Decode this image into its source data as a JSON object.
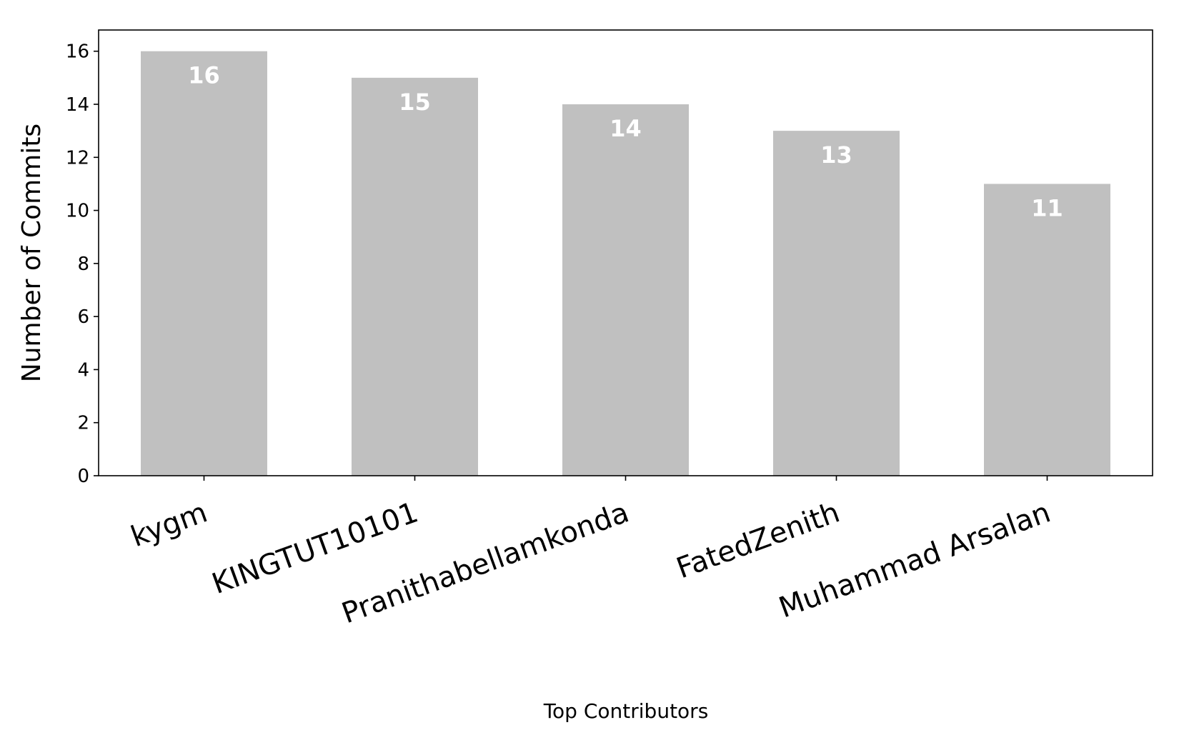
{
  "chart_data": {
    "type": "bar",
    "categories": [
      "kygm",
      "KINGTUT10101",
      "Pranithabellamkonda",
      "FatedZenith",
      "Muhammad Arsalan"
    ],
    "values": [
      16,
      15,
      14,
      13,
      11
    ],
    "title": "",
    "xlabel": "Top Contributors",
    "ylabel": "Number of Commits",
    "ylim": [
      0,
      16.8
    ],
    "yticks": [
      "0",
      "2",
      "4",
      "6",
      "8",
      "10",
      "12",
      "14",
      "16"
    ],
    "grid": false,
    "bar_color": "#c0c0c0",
    "data_label_color": "#ffffff"
  }
}
